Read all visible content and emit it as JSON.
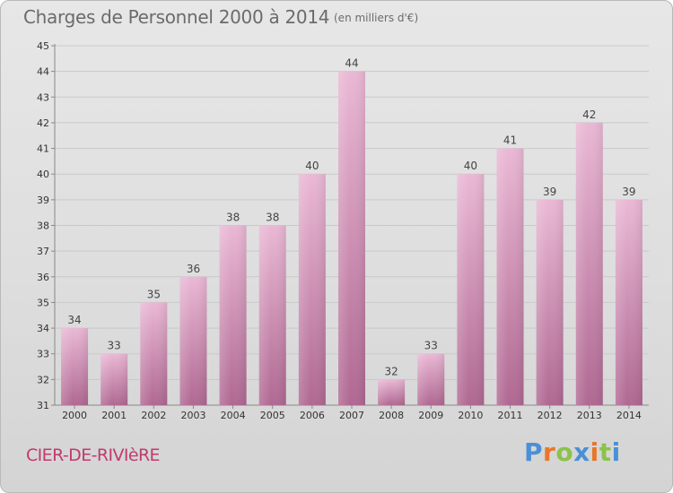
{
  "title": "Charges de Personnel 2000 à 2014",
  "subtitle": "(en milliers d'€)",
  "commune": "CIER-DE-RIVIèRE",
  "logo": {
    "letters": [
      "P",
      "r",
      "o",
      "x",
      "i",
      "t",
      "i"
    ],
    "colors": [
      "#4a90d6",
      "#e8772a",
      "#8bc34a",
      "#4a90d6",
      "#e8772a",
      "#8bc34a",
      "#4a90d6"
    ]
  },
  "colors": {
    "bar_light": "#e9b6d3",
    "bar_dark": "#b56e97",
    "text": "#6b6b6b",
    "accent": "#c13a6f"
  },
  "chart_data": {
    "type": "bar",
    "categories": [
      "2000",
      "2001",
      "2002",
      "2003",
      "2004",
      "2005",
      "2006",
      "2007",
      "2008",
      "2009",
      "2010",
      "2011",
      "2012",
      "2013",
      "2014"
    ],
    "values": [
      34,
      33,
      35,
      36,
      38,
      38,
      40,
      44,
      32,
      33,
      40,
      41,
      39,
      42,
      39
    ],
    "ylim": [
      31,
      45
    ],
    "yticks": [
      31,
      32,
      33,
      34,
      35,
      36,
      37,
      38,
      39,
      40,
      41,
      42,
      43,
      44,
      45
    ],
    "grid": true,
    "xlabel": "",
    "ylabel": ""
  }
}
